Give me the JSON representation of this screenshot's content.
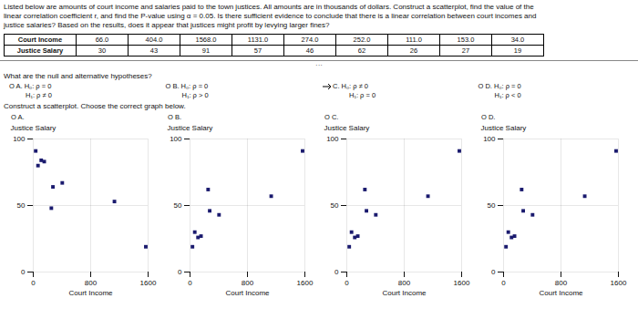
{
  "text_lines": [
    "Listed below are amounts of court income and salaries paid to the town justices. All amounts are in thousands of dollars. Construct a scatterplot, find the value of the",
    "linear correlation coefficient r, and find the P-value using α = 0.05. Is there sufficient evidence to conclude that there is a linear correlation between court incomes and",
    "justice salaries? Based on the results, does it appear that justices might profit by levying larger fines?"
  ],
  "table": {
    "row_labels": [
      "Court Income",
      "Justice Salary"
    ],
    "rows": [
      [
        "66.0",
        "404.0",
        "1568.0",
        "1131.0",
        "274.0",
        "252.0",
        "111.0",
        "153.0",
        "34.0"
      ],
      [
        "30",
        "43",
        "91",
        "57",
        "46",
        "62",
        "26",
        "27",
        "19"
      ]
    ]
  },
  "separator": "···",
  "hyp_question": "What are the null and alternative hypotheses?",
  "hyp_options": [
    {
      "lines": [
        "O A.  H₀: ρ = 0",
        "H₁: ρ ≠ 0"
      ]
    },
    {
      "lines": [
        "O B.  H₀: ρ = 0",
        "H₁: ρ > 0"
      ]
    },
    {
      "lines": [
        "C.  H₀: ρ ≠ 0",
        "H₁: ρ = 0"
      ],
      "selected": true
    },
    {
      "lines": [
        "O D.  H₀: ρ = 0",
        "H₁: ρ < 0"
      ]
    }
  ],
  "scatter_question": "Construct a scatterplot. Choose the correct graph below.",
  "chart_data": [
    {
      "type": "scatter",
      "title": "O A.",
      "xlabel": "Court Income",
      "ylabel": "Justice Salary",
      "x": [
        66,
        404,
        111,
        153,
        34,
        274,
        252,
        1131,
        1568
      ],
      "values": [
        80,
        67,
        84,
        83,
        91,
        64,
        48,
        53,
        19
      ],
      "xlim": [
        0,
        1600
      ],
      "ylim": [
        0,
        100
      ],
      "xticks": [
        0,
        800,
        1600
      ],
      "yticks": [
        0,
        50,
        100
      ],
      "grid": true,
      "color": "#1a1a6e",
      "marker": "square"
    },
    {
      "type": "scatter",
      "title": "O B.",
      "xlabel": "Court Income",
      "ylabel": "Justice Salary",
      "x": [
        66,
        404,
        111,
        153,
        34,
        274,
        252,
        1131,
        1568
      ],
      "values": [
        30,
        43,
        26,
        27,
        19,
        46,
        62,
        57,
        91
      ],
      "xlim": [
        0,
        1600
      ],
      "ylim": [
        0,
        100
      ],
      "xticks": [
        0,
        800,
        1600
      ],
      "yticks": [
        0,
        50,
        100
      ],
      "grid": true,
      "color": "#1a1a6e",
      "marker": "square"
    },
    {
      "type": "scatter",
      "title": "O C.",
      "xlabel": "Court Income",
      "ylabel": "Justice Salary",
      "x": [
        66,
        404,
        1568,
        1131,
        274,
        252,
        111,
        153,
        34
      ],
      "values": [
        30,
        43,
        91,
        57,
        46,
        62,
        26,
        27,
        19
      ],
      "xlim": [
        0,
        1600
      ],
      "ylim": [
        0,
        100
      ],
      "xticks": [
        0,
        800,
        1600
      ],
      "yticks": [
        0,
        50,
        100
      ],
      "grid": true,
      "color": "#1a1a6e",
      "marker": "square"
    },
    {
      "type": "scatter",
      "title": "O D.",
      "xlabel": "Court Income",
      "ylabel": "Justice Salary",
      "x": [
        66,
        404,
        1568,
        1131,
        274,
        252,
        111,
        153,
        34
      ],
      "values": [
        30,
        43,
        91,
        57,
        46,
        62,
        26,
        27,
        19
      ],
      "xlim": [
        0,
        1600
      ],
      "ylim": [
        0,
        100
      ],
      "xticks": [
        0,
        800,
        1600
      ],
      "yticks": [
        0,
        50,
        100
      ],
      "grid": true,
      "color": "#1a1a6e",
      "marker": "square"
    }
  ]
}
